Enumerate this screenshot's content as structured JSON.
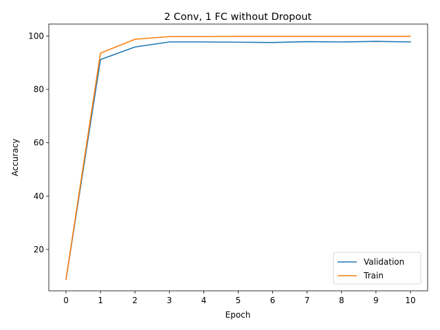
{
  "chart_data": {
    "type": "line",
    "title": "2 Conv, 1 FC without Dropout",
    "xlabel": "Epoch",
    "ylabel": "Accuracy",
    "x": [
      0,
      1,
      2,
      3,
      4,
      5,
      6,
      7,
      8,
      9,
      10
    ],
    "xticks": [
      0,
      1,
      2,
      3,
      4,
      5,
      6,
      7,
      8,
      9,
      10
    ],
    "yticks": [
      20,
      40,
      60,
      80,
      100
    ],
    "xlim": [
      -0.5,
      10.5
    ],
    "ylim": [
      4.5,
      104.5
    ],
    "grid": false,
    "legend_position": "lower-right",
    "series": [
      {
        "name": "Validation",
        "color": "#1f77b4",
        "values": [
          8.8,
          91.2,
          95.9,
          97.8,
          97.8,
          97.7,
          97.6,
          97.9,
          97.8,
          98.0,
          97.8
        ]
      },
      {
        "name": "Train",
        "color": "#ff7f0e",
        "values": [
          8.9,
          93.6,
          98.8,
          99.8,
          99.8,
          99.9,
          99.9,
          99.9,
          99.9,
          99.9,
          99.9
        ]
      }
    ]
  }
}
